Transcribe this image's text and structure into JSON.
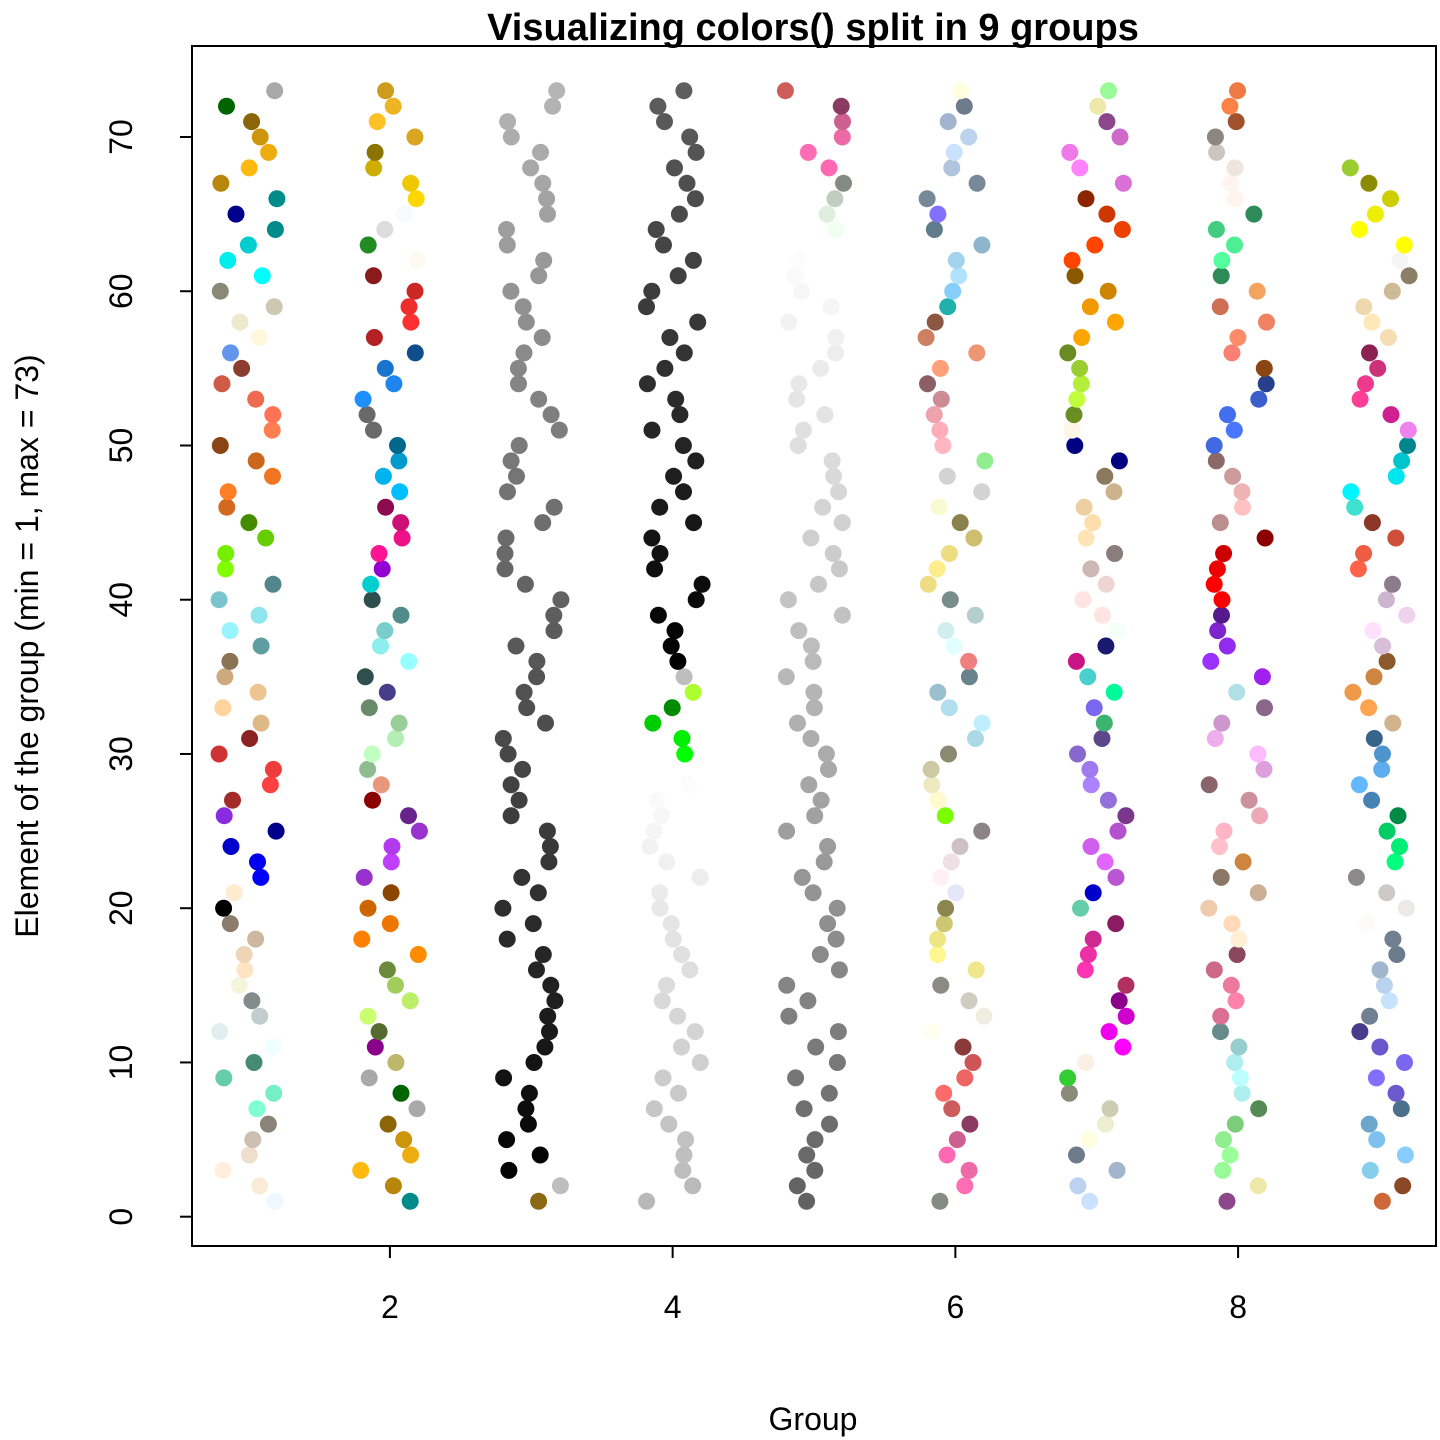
{
  "chart_data": {
    "type": "scatter",
    "title": "Visualizing colors() split in 9 groups",
    "xlabel": "Group",
    "ylabel": "Element of the group (min = 1, max = 73)",
    "xlim": [
      0.6,
      9.4
    ],
    "ylim": [
      -1.9,
      75.9
    ],
    "x_ticks": [
      2,
      4,
      6,
      8
    ],
    "y_ticks": [
      0,
      10,
      20,
      30,
      40,
      50,
      60,
      70
    ],
    "grid": false,
    "groups": [
      {
        "group": 1,
        "colors": [
          "#f0f8ff",
          "#faebd7",
          "#ffefdb",
          "#eedfcc",
          "#cdc0b0",
          "#8b8378",
          "#7fffd4",
          "#76eec6",
          "#66cdaa",
          "#458b74",
          "#f0ffff",
          "#e0eeee",
          "#c1cdcd",
          "#838b8b",
          "#f5f5dc",
          "#ffe4c4",
          "#eed5b7",
          "#cdb79e",
          "#8b7d6b",
          "#000000",
          "#ffebcd",
          "#0000ff",
          "#0000ee",
          "#0000cd",
          "#00008b",
          "#8a2be2",
          "#a52a2a",
          "#ff4040",
          "#ee3b3b",
          "#cd3333",
          "#8b2323",
          "#deb887",
          "#ffd39b",
          "#eec591",
          "#cdaa7d",
          "#8b7355",
          "#5f9ea0",
          "#98f5ff",
          "#8ee5ee",
          "#7ac5cd",
          "#53868b",
          "#7fff00",
          "#76ee00",
          "#66cd00",
          "#458b00",
          "#d2691e",
          "#ff7f24",
          "#ee7621",
          "#cd661d",
          "#8b4513",
          "#ff7f50",
          "#ff7256",
          "#ee6a50",
          "#cd5b45",
          "#8b3e2f",
          "#6495ed",
          "#fff8dc",
          "#eee8cd",
          "#cdc8b1",
          "#8b8878",
          "#00ffff",
          "#00eeee",
          "#00cdcd",
          "#008b8b",
          "#00008b",
          "#008b8b",
          "#b8860b",
          "#ffb90f",
          "#eead0e",
          "#cd950c",
          "#8b6508",
          "#006400",
          "#a9a9a9"
        ]
      },
      {
        "group": 2,
        "colors": [
          "#008b8b",
          "#b8860b",
          "#ffb90f",
          "#eead0e",
          "#cd950c",
          "#8b6508",
          "#a9a9a9",
          "#006400",
          "#a9a9a9",
          "#bdb76b",
          "#8b008b",
          "#556b2f",
          "#caff70",
          "#bcee68",
          "#a2cd5a",
          "#6e8b3d",
          "#ff8c00",
          "#ff7f00",
          "#ee7600",
          "#cd6600",
          "#8b4500",
          "#9932cc",
          "#bf3eff",
          "#b23aee",
          "#9a32cd",
          "#68228b",
          "#8b0000",
          "#e9967a",
          "#8fbc8f",
          "#c1ffc1",
          "#b4eeb4",
          "#9bcd9b",
          "#698b69",
          "#483d8b",
          "#2f4f4f",
          "#97ffff",
          "#8deeee",
          "#79cdcd",
          "#528b8b",
          "#2f4f4f",
          "#00ced1",
          "#9400d3",
          "#ff1493",
          "#ee1289",
          "#cd1076",
          "#8b0a50",
          "#00bfff",
          "#00b2ee",
          "#009acd",
          "#00688b",
          "#696969",
          "#696969",
          "#1e90ff",
          "#1c86ee",
          "#1874cd",
          "#104e8b",
          "#b22222",
          "#ff3030",
          "#ee2c2c",
          "#cd2626",
          "#8b1a1a",
          "#fffaf0",
          "#228b22",
          "#dcdcdc",
          "#f8f8ff",
          "#ffd700",
          "#eec900",
          "#cdad00",
          "#8b7500",
          "#daa520",
          "#ffc125",
          "#eeb422",
          "#cd9b1d"
        ]
      },
      {
        "group": 3,
        "colors": [
          "#8b6914",
          "#bebebe",
          "#030303",
          "#050505",
          "#080808",
          "#0a0a0a",
          "#0d0d0d",
          "#0f0f0f",
          "#121212",
          "#141414",
          "#171717",
          "#1a1a1a",
          "#1c1c1c",
          "#1f1f1f",
          "#212121",
          "#242424",
          "#262626",
          "#292929",
          "#2b2b2b",
          "#2e2e2e",
          "#303030",
          "#333333",
          "#363636",
          "#383838",
          "#3b3b3b",
          "#3d3d3d",
          "#404040",
          "#424242",
          "#454545",
          "#474747",
          "#4a4a4a",
          "#4d4d4d",
          "#4f4f4f",
          "#525252",
          "#545454",
          "#575757",
          "#595959",
          "#5c5c5c",
          "#5e5e5e",
          "#616161",
          "#636363",
          "#666666",
          "#696969",
          "#6b6b6b",
          "#6e6e6e",
          "#707070",
          "#737373",
          "#757575",
          "#787878",
          "#7a7a7a",
          "#7d7d7d",
          "#7f7f7f",
          "#828282",
          "#858585",
          "#878787",
          "#8a8a8a",
          "#8c8c8c",
          "#8f8f8f",
          "#919191",
          "#949494",
          "#969696",
          "#999999",
          "#9c9c9c",
          "#9e9e9e",
          "#a1a1a1",
          "#a3a3a3",
          "#a6a6a6",
          "#a8a8a8",
          "#ababab",
          "#adadad",
          "#b0b0b0",
          "#b3b3b3",
          "#b5b5b5"
        ]
      },
      {
        "group": 4,
        "colors": [
          "#b8b8b8",
          "#bababa",
          "#bdbdbd",
          "#bfbfbf",
          "#c2c2c2",
          "#c4c4c4",
          "#c7c7c7",
          "#c9c9c9",
          "#cccccc",
          "#cfcfcf",
          "#d1d1d1",
          "#d4d4d4",
          "#d6d6d6",
          "#d9d9d9",
          "#dbdbdb",
          "#dedede",
          "#e0e0e0",
          "#e3e3e3",
          "#e5e5e5",
          "#e8e8e8",
          "#ebebeb",
          "#ededed",
          "#f0f0f0",
          "#f2f2f2",
          "#f5f5f5",
          "#f7f7f7",
          "#fafafa",
          "#fcfcfc",
          "#ffffff",
          "#00ff00",
          "#00ee00",
          "#00cd00",
          "#008b00",
          "#adff2f",
          "#bebebe",
          "#000000",
          "#030303",
          "#050505",
          "#080808",
          "#0a0a0a",
          "#0d0d0d",
          "#0f0f0f",
          "#121212",
          "#141414",
          "#171717",
          "#1a1a1a",
          "#1c1c1c",
          "#1f1f1f",
          "#212121",
          "#242424",
          "#262626",
          "#292929",
          "#2b2b2b",
          "#2e2e2e",
          "#303030",
          "#333333",
          "#363636",
          "#383838",
          "#3b3b3b",
          "#3d3d3d",
          "#404040",
          "#424242",
          "#454545",
          "#474747",
          "#4a4a4a",
          "#4d4d4d",
          "#4f4f4f",
          "#525252",
          "#545454",
          "#575757",
          "#595959",
          "#5c5c5c",
          "#5e5e5e"
        ]
      },
      {
        "group": 5,
        "colors": [
          "#616161",
          "#636363",
          "#666666",
          "#696969",
          "#6b6b6b",
          "#6e6e6e",
          "#707070",
          "#737373",
          "#757575",
          "#787878",
          "#7a7a7a",
          "#7d7d7d",
          "#7f7f7f",
          "#828282",
          "#858585",
          "#878787",
          "#8a8a8a",
          "#8c8c8c",
          "#8f8f8f",
          "#919191",
          "#949494",
          "#969696",
          "#999999",
          "#9c9c9c",
          "#9e9e9e",
          "#a1a1a1",
          "#a3a3a3",
          "#a6a6a6",
          "#a8a8a8",
          "#ababab",
          "#adadad",
          "#b0b0b0",
          "#b3b3b3",
          "#b5b5b5",
          "#b8b8b8",
          "#bababa",
          "#bdbdbd",
          "#bfbfbf",
          "#c2c2c2",
          "#c4c4c4",
          "#c7c7c7",
          "#c9c9c9",
          "#cccccc",
          "#cfcfcf",
          "#d1d1d1",
          "#d4d4d4",
          "#d6d6d6",
          "#d9d9d9",
          "#dbdbdb",
          "#dedede",
          "#e0e0e0",
          "#e3e3e3",
          "#e5e5e5",
          "#e8e8e8",
          "#ebebeb",
          "#ededed",
          "#f0f0f0",
          "#f2f2f2",
          "#f5f5f5",
          "#f7f7f7",
          "#fafafa",
          "#fcfcfc",
          "#ffffff",
          "#f0fff0",
          "#e0eee0",
          "#c1cdc1",
          "#838b83",
          "#ff69b4",
          "#ff6eb4",
          "#ee6aa7",
          "#cd6090",
          "#8b3a62",
          "#cd5c5c"
        ]
      },
      {
        "group": 6,
        "colors": [
          "#838b83",
          "#ff6eb4",
          "#ee6aa7",
          "#ff69b4",
          "#cd6090",
          "#8b3a62",
          "#cd5c5c",
          "#ff6a6a",
          "#ee6363",
          "#cd5555",
          "#8b3a3a",
          "#fffff0",
          "#eeeee0",
          "#cdcdc1",
          "#8b8b83",
          "#f0e68c",
          "#fff68f",
          "#eee685",
          "#cdc673",
          "#8b864e",
          "#e6e6fa",
          "#fff0f5",
          "#eee0e5",
          "#cdc1c5",
          "#8b8386",
          "#7cfc00",
          "#fffacd",
          "#eee9bf",
          "#cdc9a5",
          "#8b8970",
          "#add8e6",
          "#bfefff",
          "#b2dfee",
          "#9ac0cd",
          "#68838b",
          "#f08080",
          "#e0ffff",
          "#d1eeee",
          "#b4cdcd",
          "#7a8b8b",
          "#eedd82",
          "#ffec8b",
          "#eedc82",
          "#cdbe70",
          "#8b814c",
          "#fafad2",
          "#d3d3d3",
          "#d3d3d3",
          "#90ee90",
          "#ffb6c1",
          "#ffaeb9",
          "#eea2ad",
          "#cd8c95",
          "#8b5f65",
          "#ffa07a",
          "#ee9572",
          "#cd8162",
          "#8b5742",
          "#20b2aa",
          "#87cefa",
          "#b0e2ff",
          "#a4d3ee",
          "#8db6cd",
          "#607b8b",
          "#8470ff",
          "#778899",
          "#778899",
          "#b0c4de",
          "#cae1ff",
          "#bcd2ee",
          "#a2b5cd",
          "#6e7b8b",
          "#ffffe0"
        ]
      },
      {
        "group": 7,
        "colors": [
          "#cae1ff",
          "#bcd2ee",
          "#a2b5cd",
          "#6e7b8b",
          "#ffffe0",
          "#eeeed1",
          "#cdcdb4",
          "#8b8b7a",
          "#32cd32",
          "#faf0e6",
          "#ff00ff",
          "#ee00ee",
          "#cd00cd",
          "#8b008b",
          "#b03060",
          "#ff34b3",
          "#ee30a7",
          "#cd2990",
          "#8b1c62",
          "#66cdaa",
          "#0000cd",
          "#ba55d3",
          "#e066ff",
          "#d15fee",
          "#b452cd",
          "#7a378b",
          "#9370db",
          "#ab82ff",
          "#9f79ee",
          "#8968cd",
          "#5d478b",
          "#3cb371",
          "#7b68ee",
          "#00fa9a",
          "#48d1cc",
          "#c71585",
          "#191970",
          "#f5fffa",
          "#ffe4e1",
          "#ffe4e1",
          "#eed5d2",
          "#cdb7b5",
          "#8b7d7b",
          "#ffe4b5",
          "#ffdead",
          "#eecfa1",
          "#cdb38b",
          "#8b795e",
          "#000080",
          "#000080",
          "#fdf5e6",
          "#6b8e23",
          "#c0ff3e",
          "#b3ee3a",
          "#9acd32",
          "#698b22",
          "#ffa500",
          "#ffa500",
          "#ee9a00",
          "#cd8500",
          "#8b5a00",
          "#ff4500",
          "#ff4500",
          "#ee4000",
          "#cd3700",
          "#8b2500",
          "#da70d6",
          "#ff83fa",
          "#ee7ae9",
          "#cd69c9",
          "#8b4789",
          "#eee8aa",
          "#98fb98"
        ]
      },
      {
        "group": 8,
        "colors": [
          "#8b4789",
          "#eee8aa",
          "#98fb98",
          "#9aff9a",
          "#90ee90",
          "#7ccd7c",
          "#548b54",
          "#afeeee",
          "#bbffff",
          "#aeeeee",
          "#96cdcd",
          "#668b8b",
          "#db7093",
          "#ff82ab",
          "#ee799f",
          "#cd6889",
          "#8b475d",
          "#ffefd5",
          "#ffdab9",
          "#eecbad",
          "#cdaf95",
          "#8b7765",
          "#cd853f",
          "#ffc0cb",
          "#ffb5c5",
          "#eea9b8",
          "#cd919e",
          "#8b636c",
          "#dda0dd",
          "#ffbbff",
          "#eeaeee",
          "#cd96cd",
          "#8b668b",
          "#b0e0e6",
          "#a020f0",
          "#9b30ff",
          "#912cee",
          "#7d26cd",
          "#551a8b",
          "#ff0000",
          "#ff0000",
          "#ee0000",
          "#cd0000",
          "#8b0000",
          "#bc8f8f",
          "#ffc1c1",
          "#eeb4b4",
          "#cd9b9b",
          "#8b6969",
          "#4169e1",
          "#4876ff",
          "#436eee",
          "#3a5fcd",
          "#27408b",
          "#8b4513",
          "#fa8072",
          "#ff8c69",
          "#ee8262",
          "#cd7054",
          "#f4a460",
          "#2e8b57",
          "#54ff9f",
          "#4eee94",
          "#43cd80",
          "#2e8b57",
          "#fff5ee",
          "#fff5ee",
          "#eee5de",
          "#cdc5bf",
          "#8b8682",
          "#a0522d",
          "#ff8247",
          "#ee7942"
        ]
      },
      {
        "group": 9,
        "colors": [
          "#cd6839",
          "#8b4726",
          "#87ceeb",
          "#87ceff",
          "#7ec0ee",
          "#6ca6cd",
          "#4a708b",
          "#6a5acd",
          "#836fff",
          "#7a67ee",
          "#6959cd",
          "#473c8b",
          "#708090",
          "#c6e2ff",
          "#b9d3ee",
          "#9fb6cd",
          "#6c7b8b",
          "#708090",
          "#fffafa",
          "#eee9e9",
          "#cdc9c9",
          "#8b8989",
          "#00ff7f",
          "#00ee76",
          "#00cd66",
          "#008b45",
          "#4682b4",
          "#63b8ff",
          "#5cacee",
          "#4f94cd",
          "#36648b",
          "#d2b48c",
          "#ffa54f",
          "#ee9a49",
          "#cd853f",
          "#8b5a2b",
          "#d8bfd8",
          "#ffe1ff",
          "#eed2ee",
          "#cdb5cd",
          "#8b7b8b",
          "#ff6347",
          "#ee5c42",
          "#cd4f39",
          "#8b3626",
          "#40e0d0",
          "#00f5ff",
          "#00e5ee",
          "#00c5cd",
          "#00868b",
          "#ee82ee",
          "#d02090",
          "#ff3e96",
          "#ee3a8c",
          "#cd3278",
          "#8b2252",
          "#f5deb3",
          "#ffe7ba",
          "#eed8ae",
          "#cdba96",
          "#8b7e66",
          "#f5f5f5",
          "#ffff00",
          "#ffff00",
          "#eeee00",
          "#cdcd00",
          "#8b8b00",
          "#9acd32"
        ]
      }
    ]
  }
}
